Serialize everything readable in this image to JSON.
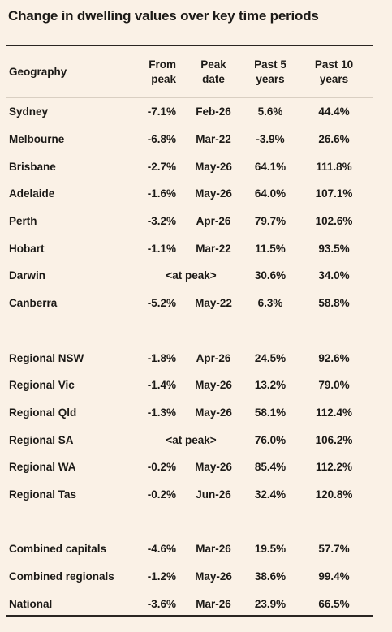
{
  "title": "Change in dwelling values over key time periods",
  "table": {
    "columns": [
      "Geography",
      "From\npeak",
      "Peak\ndate",
      "Past 5\nyears",
      "Past 10\nyears"
    ],
    "groups": [
      [
        {
          "geography": "Sydney",
          "from_peak": "-7.1%",
          "peak_date": "Feb-26",
          "past_5": "5.6%",
          "past_10": "44.4%"
        },
        {
          "geography": "Melbourne",
          "from_peak": "-6.8%",
          "peak_date": "Mar-22",
          "past_5": "-3.9%",
          "past_10": "26.6%"
        },
        {
          "geography": "Brisbane",
          "from_peak": "-2.7%",
          "peak_date": "May-26",
          "past_5": "64.1%",
          "past_10": "111.8%"
        },
        {
          "geography": "Adelaide",
          "from_peak": "-1.6%",
          "peak_date": "May-26",
          "past_5": "64.0%",
          "past_10": "107.1%"
        },
        {
          "geography": "Perth",
          "from_peak": "-3.2%",
          "peak_date": "Apr-26",
          "past_5": "79.7%",
          "past_10": "102.6%"
        },
        {
          "geography": "Hobart",
          "from_peak": "-1.1%",
          "peak_date": "Mar-22",
          "past_5": "11.5%",
          "past_10": "93.5%"
        },
        {
          "geography": "Darwin",
          "status": "<at peak>",
          "past_5": "30.6%",
          "past_10": "34.0%"
        },
        {
          "geography": "Canberra",
          "from_peak": "-5.2%",
          "peak_date": "May-22",
          "past_5": "6.3%",
          "past_10": "58.8%"
        }
      ],
      [
        {
          "geography": "Regional NSW",
          "from_peak": "-1.8%",
          "peak_date": "Apr-26",
          "past_5": "24.5%",
          "past_10": "92.6%"
        },
        {
          "geography": "Regional Vic",
          "from_peak": "-1.4%",
          "peak_date": "May-26",
          "past_5": "13.2%",
          "past_10": "79.0%"
        },
        {
          "geography": "Regional Qld",
          "from_peak": "-1.3%",
          "peak_date": "May-26",
          "past_5": "58.1%",
          "past_10": "112.4%"
        },
        {
          "geography": "Regional SA",
          "status": "<at peak>",
          "past_5": "76.0%",
          "past_10": "106.2%"
        },
        {
          "geography": "Regional WA",
          "from_peak": "-0.2%",
          "peak_date": "May-26",
          "past_5": "85.4%",
          "past_10": "112.2%"
        },
        {
          "geography": "Regional Tas",
          "from_peak": "-0.2%",
          "peak_date": "Jun-26",
          "past_5": "32.4%",
          "past_10": "120.8%"
        }
      ],
      [
        {
          "geography": "Combined capitals",
          "from_peak": "-4.6%",
          "peak_date": "Mar-26",
          "past_5": "19.5%",
          "past_10": "57.7%"
        },
        {
          "geography": "Combined regionals",
          "from_peak": "-1.2%",
          "peak_date": "May-26",
          "past_5": "38.6%",
          "past_10": "99.4%"
        },
        {
          "geography": "National",
          "from_peak": "-3.6%",
          "peak_date": "Mar-26",
          "past_5": "23.9%",
          "past_10": "66.5%"
        }
      ]
    ]
  }
}
